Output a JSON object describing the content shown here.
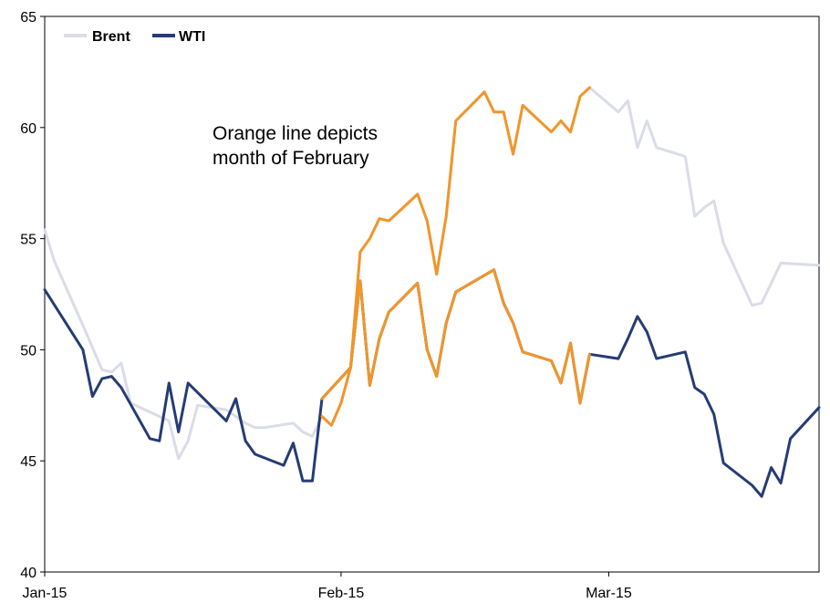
{
  "chart_data": {
    "type": "line",
    "title": "",
    "xlabel": "",
    "ylabel": "",
    "ylim": [
      40,
      65
    ],
    "yticks": [
      "40",
      "45",
      "50",
      "55",
      "60",
      "65"
    ],
    "xticks": [
      {
        "label": "Jan-15",
        "x": "2015-01-01"
      },
      {
        "label": "Feb-15",
        "x": "2015-02-01"
      },
      {
        "label": "Mar-15",
        "x": "2015-03-01"
      }
    ],
    "xlim": [
      "2015-01-01",
      "2015-03-23"
    ],
    "legend_position": "top-left",
    "annotation": {
      "lines": [
        "Orange line depicts",
        "month of February"
      ]
    },
    "highlight": {
      "start": "2015-01-30",
      "end": "2015-02-27",
      "color": "#F0962A"
    },
    "series": [
      {
        "name": "Brent",
        "color": "#DADCE8",
        "points": [
          [
            "2015-01-01",
            55.4
          ],
          [
            "2015-01-02",
            54.0
          ],
          [
            "2015-01-05",
            51.1
          ],
          [
            "2015-01-06",
            50.1
          ],
          [
            "2015-01-07",
            49.1
          ],
          [
            "2015-01-08",
            49.0
          ],
          [
            "2015-01-09",
            49.4
          ],
          [
            "2015-01-10",
            47.6
          ],
          [
            "2015-01-13",
            47.0
          ],
          [
            "2015-01-14",
            46.8
          ],
          [
            "2015-01-15",
            45.1
          ],
          [
            "2015-01-16",
            45.9
          ],
          [
            "2015-01-17",
            47.5
          ],
          [
            "2015-01-20",
            47.3
          ],
          [
            "2015-01-21",
            47.0
          ],
          [
            "2015-01-22",
            46.7
          ],
          [
            "2015-01-23",
            46.5
          ],
          [
            "2015-01-24",
            46.5
          ],
          [
            "2015-01-27",
            46.7
          ],
          [
            "2015-01-28",
            46.3
          ],
          [
            "2015-01-29",
            46.1
          ],
          [
            "2015-01-30",
            47.0
          ],
          [
            "2015-01-31",
            46.6
          ],
          [
            "2015-02-01",
            47.6
          ],
          [
            "2015-02-02",
            49.2
          ],
          [
            "2015-02-03",
            54.4
          ],
          [
            "2015-02-04",
            55.0
          ],
          [
            "2015-02-05",
            55.9
          ],
          [
            "2015-02-06",
            55.8
          ],
          [
            "2015-02-09",
            57.0
          ],
          [
            "2015-02-10",
            55.8
          ],
          [
            "2015-02-11",
            53.4
          ],
          [
            "2015-02-12",
            56.0
          ],
          [
            "2015-02-13",
            60.3
          ],
          [
            "2015-02-16",
            61.6
          ],
          [
            "2015-02-17",
            60.7
          ],
          [
            "2015-02-18",
            60.7
          ],
          [
            "2015-02-19",
            58.8
          ],
          [
            "2015-02-20",
            61.0
          ],
          [
            "2015-02-23",
            59.8
          ],
          [
            "2015-02-24",
            60.3
          ],
          [
            "2015-02-25",
            59.8
          ],
          [
            "2015-02-26",
            61.4
          ],
          [
            "2015-02-27",
            61.8
          ],
          [
            "2015-03-02",
            60.7
          ],
          [
            "2015-03-03",
            61.2
          ],
          [
            "2015-03-04",
            59.1
          ],
          [
            "2015-03-05",
            60.3
          ],
          [
            "2015-03-06",
            59.1
          ],
          [
            "2015-03-09",
            58.7
          ],
          [
            "2015-03-10",
            56.0
          ],
          [
            "2015-03-11",
            56.4
          ],
          [
            "2015-03-12",
            56.7
          ],
          [
            "2015-03-13",
            54.8
          ],
          [
            "2015-03-16",
            52.0
          ],
          [
            "2015-03-17",
            52.1
          ],
          [
            "2015-03-18",
            53.0
          ],
          [
            "2015-03-19",
            53.9
          ],
          [
            "2015-03-23",
            53.8
          ]
        ]
      },
      {
        "name": "WTI",
        "color": "#253C74",
        "points": [
          [
            "2015-01-01",
            52.7
          ],
          [
            "2015-01-05",
            50.0
          ],
          [
            "2015-01-06",
            47.9
          ],
          [
            "2015-01-07",
            48.7
          ],
          [
            "2015-01-08",
            48.8
          ],
          [
            "2015-01-09",
            48.3
          ],
          [
            "2015-01-12",
            46.0
          ],
          [
            "2015-01-13",
            45.9
          ],
          [
            "2015-01-14",
            48.5
          ],
          [
            "2015-01-15",
            46.3
          ],
          [
            "2015-01-16",
            48.5
          ],
          [
            "2015-01-20",
            46.8
          ],
          [
            "2015-01-21",
            47.8
          ],
          [
            "2015-01-22",
            45.9
          ],
          [
            "2015-01-23",
            45.3
          ],
          [
            "2015-01-26",
            44.8
          ],
          [
            "2015-01-27",
            45.8
          ],
          [
            "2015-01-28",
            44.1
          ],
          [
            "2015-01-29",
            44.1
          ],
          [
            "2015-01-30",
            47.8
          ],
          [
            "2015-02-02",
            49.2
          ],
          [
            "2015-02-03",
            53.1
          ],
          [
            "2015-02-04",
            48.4
          ],
          [
            "2015-02-05",
            50.5
          ],
          [
            "2015-02-06",
            51.7
          ],
          [
            "2015-02-09",
            53.0
          ],
          [
            "2015-02-10",
            50.0
          ],
          [
            "2015-02-11",
            48.8
          ],
          [
            "2015-02-12",
            51.2
          ],
          [
            "2015-02-13",
            52.6
          ],
          [
            "2015-02-17",
            53.6
          ],
          [
            "2015-02-18",
            52.1
          ],
          [
            "2015-02-19",
            51.2
          ],
          [
            "2015-02-20",
            49.9
          ],
          [
            "2015-02-23",
            49.5
          ],
          [
            "2015-02-24",
            48.5
          ],
          [
            "2015-02-25",
            50.3
          ],
          [
            "2015-02-26",
            47.6
          ],
          [
            "2015-02-27",
            49.8
          ],
          [
            "2015-03-02",
            49.6
          ],
          [
            "2015-03-03",
            50.5
          ],
          [
            "2015-03-04",
            51.5
          ],
          [
            "2015-03-05",
            50.8
          ],
          [
            "2015-03-06",
            49.6
          ],
          [
            "2015-03-09",
            49.9
          ],
          [
            "2015-03-10",
            48.3
          ],
          [
            "2015-03-11",
            48.0
          ],
          [
            "2015-03-12",
            47.1
          ],
          [
            "2015-03-13",
            44.9
          ],
          [
            "2015-03-16",
            43.9
          ],
          [
            "2015-03-17",
            43.4
          ],
          [
            "2015-03-18",
            44.7
          ],
          [
            "2015-03-19",
            44.0
          ],
          [
            "2015-03-20",
            46.0
          ],
          [
            "2015-03-23",
            47.4
          ]
        ]
      }
    ]
  }
}
